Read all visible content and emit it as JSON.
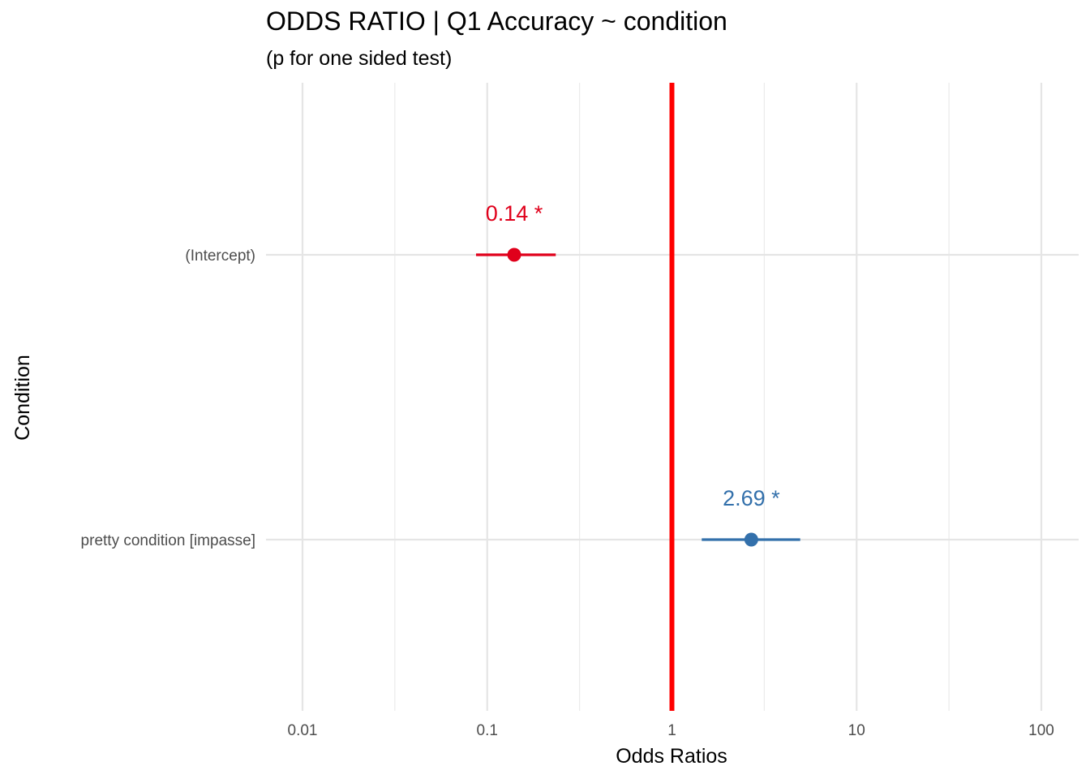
{
  "chart_data": {
    "type": "scatter",
    "title": "ODDS RATIO | Q1 Accuracy ~ condition",
    "subtitle": "(p for one sided test)",
    "xlabel": "Odds Ratios",
    "ylabel": "Condition",
    "x_scale": "log10",
    "xlim": [
      0.01,
      100
    ],
    "x_ticks": [
      0.01,
      0.1,
      1,
      10,
      100
    ],
    "x_tick_labels": [
      "0.01",
      "0.1",
      "1",
      "10",
      "100"
    ],
    "reference_line": {
      "x": 1,
      "color": "#ff0000"
    },
    "grid": true,
    "points": [
      {
        "term": "(Intercept)",
        "estimate": 0.14,
        "ci_low": 0.087,
        "ci_high": 0.235,
        "label": "0.14 *",
        "color": "#e0001b"
      },
      {
        "term": "pretty condition [impasse]",
        "estimate": 2.69,
        "ci_low": 1.45,
        "ci_high": 4.95,
        "label": "2.69 *",
        "color": "#3370ab"
      }
    ]
  }
}
